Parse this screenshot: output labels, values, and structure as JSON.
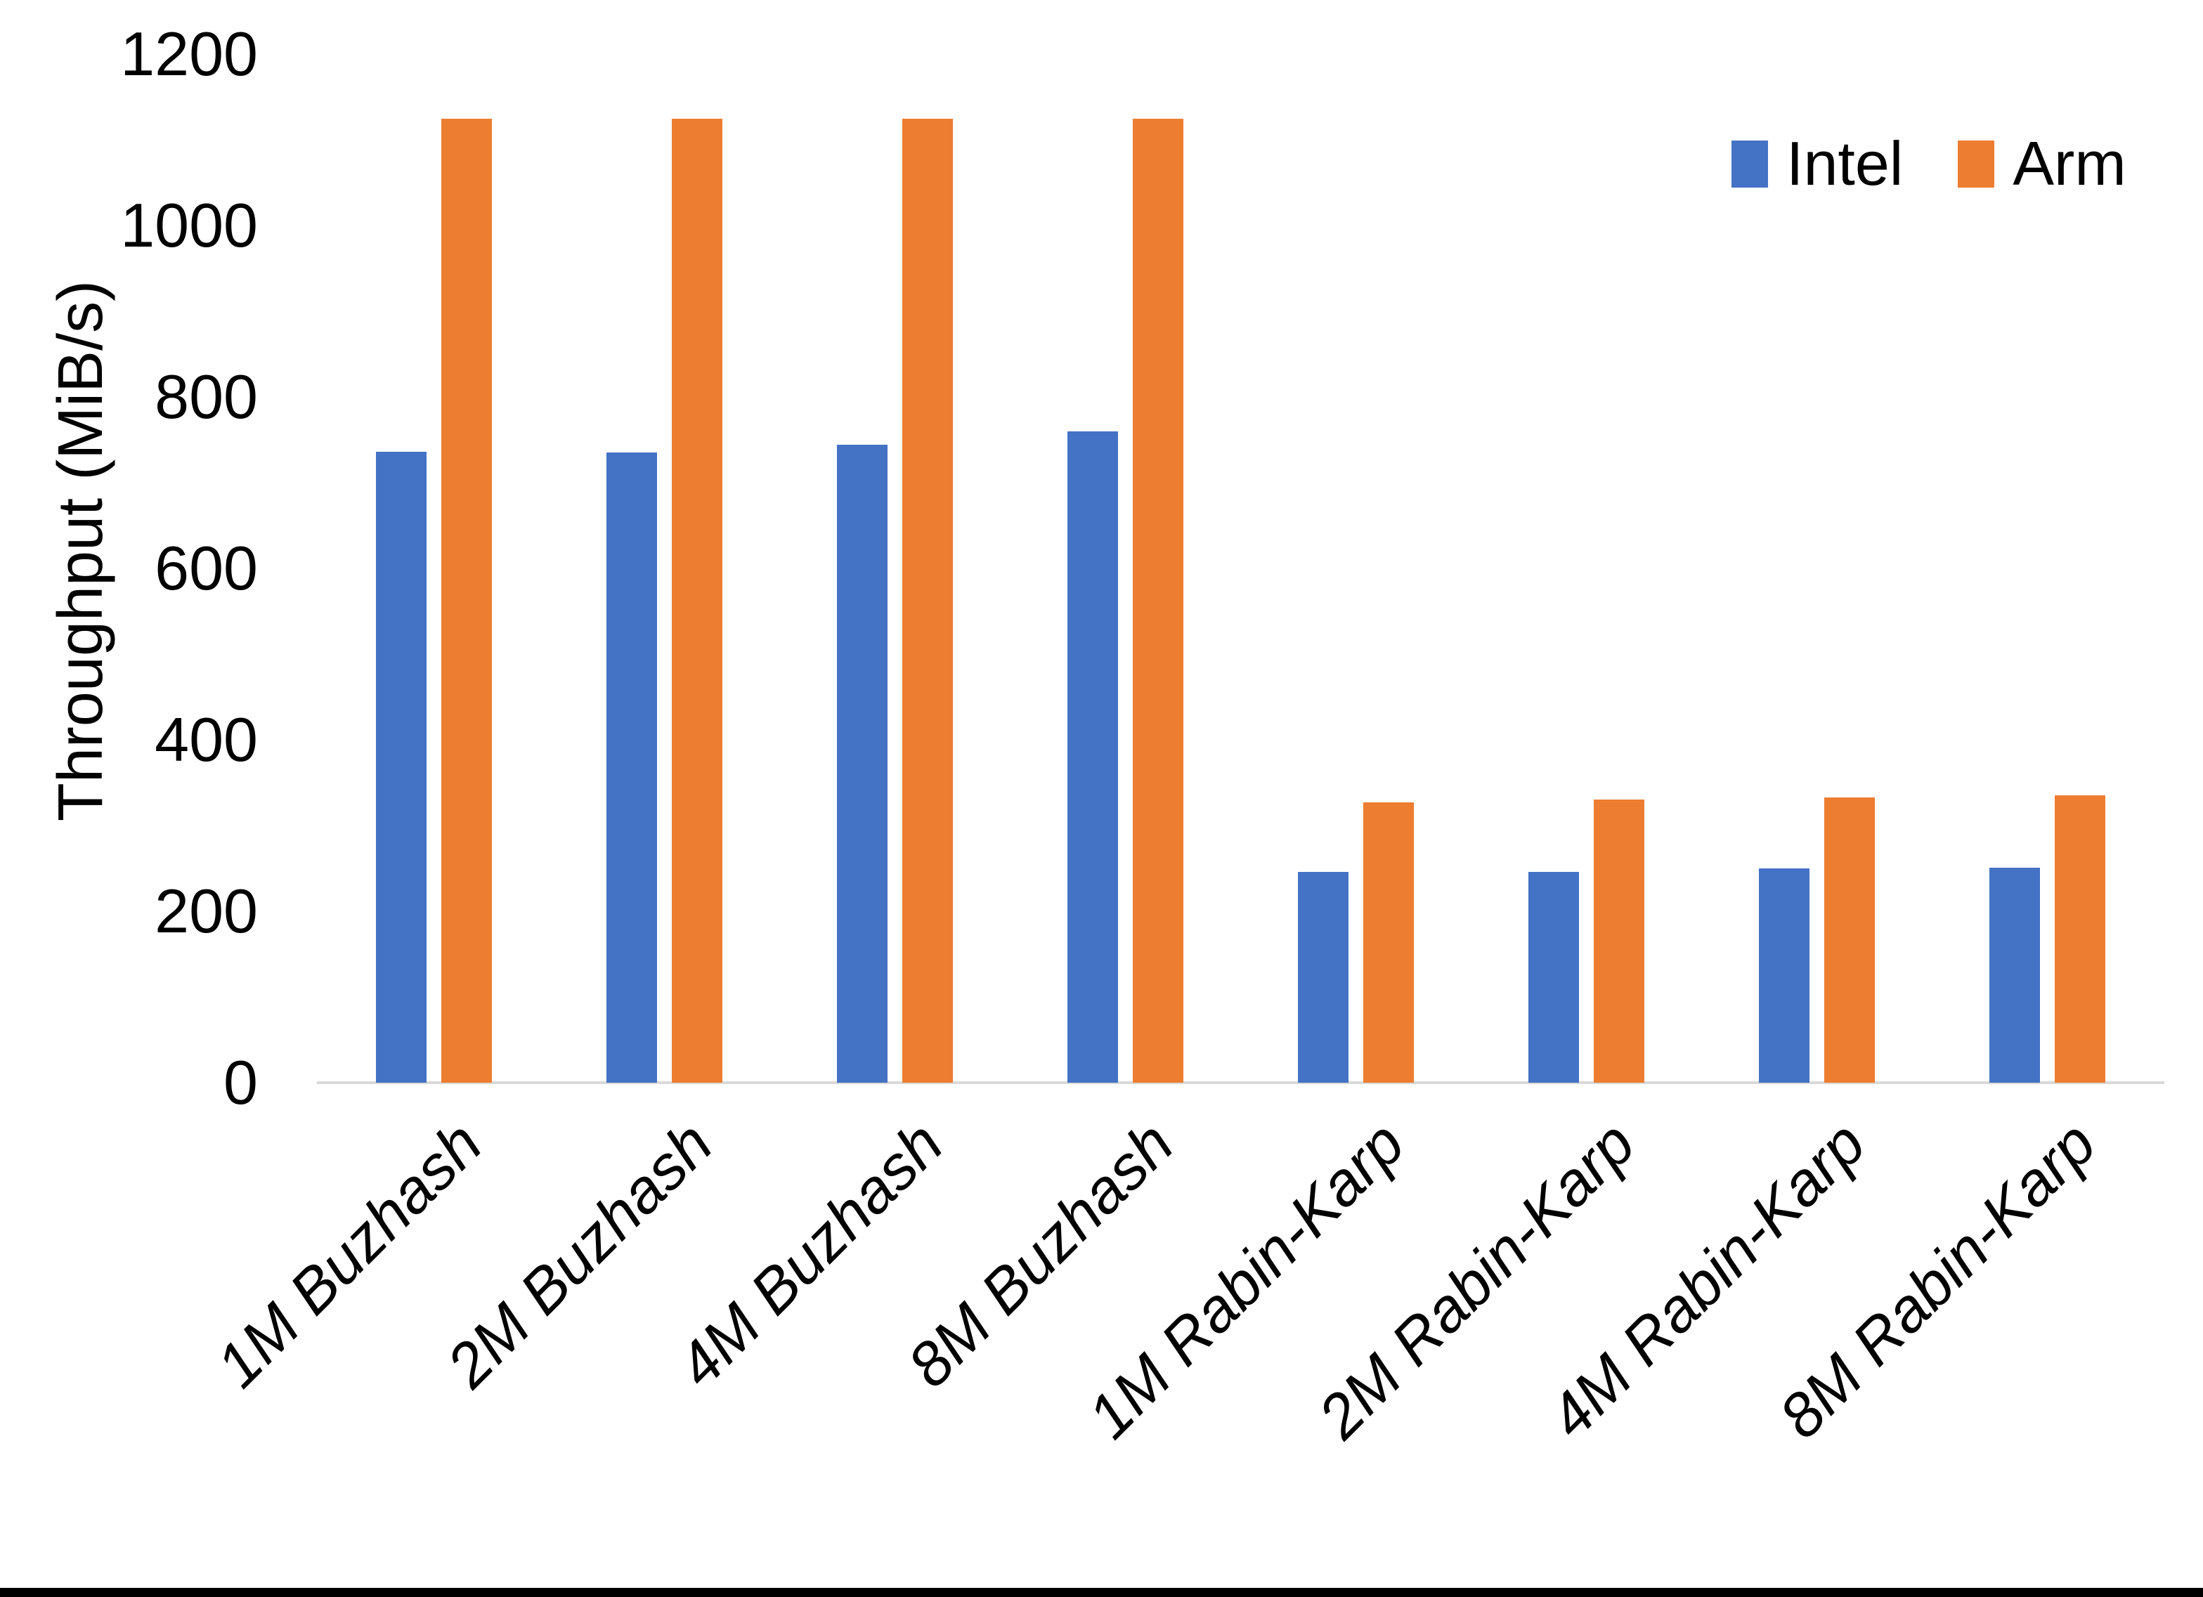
{
  "chart_data": {
    "type": "bar",
    "title": "",
    "xlabel": "",
    "ylabel": "Throughput (MiB/s)",
    "categories": [
      "1M Buzhash",
      "2M Buzhash",
      "4M Buzhash",
      "8M Buzhash",
      "1M Rabin-Karp",
      "2M Rabin-Karp",
      "4M Rabin-Karp",
      "8M Rabin-Karp"
    ],
    "series": [
      {
        "name": "Intel",
        "color": "#4472C4",
        "values": [
          736,
          735,
          744,
          760,
          246,
          246,
          250,
          251
        ]
      },
      {
        "name": "Arm",
        "color": "#ED7D31",
        "values": [
          1125,
          1125,
          1125,
          1125,
          327,
          330,
          333,
          335
        ]
      }
    ],
    "ylim": [
      0,
      1200
    ],
    "yticks": [
      0,
      200,
      400,
      600,
      800,
      1000,
      1200
    ],
    "grid": false,
    "legend_position": "top-right",
    "x_tick_rotation_deg": 45,
    "axis_line_color": "#D9D9D9",
    "text_color": "#000000",
    "background_color": "#FFFFFF"
  }
}
